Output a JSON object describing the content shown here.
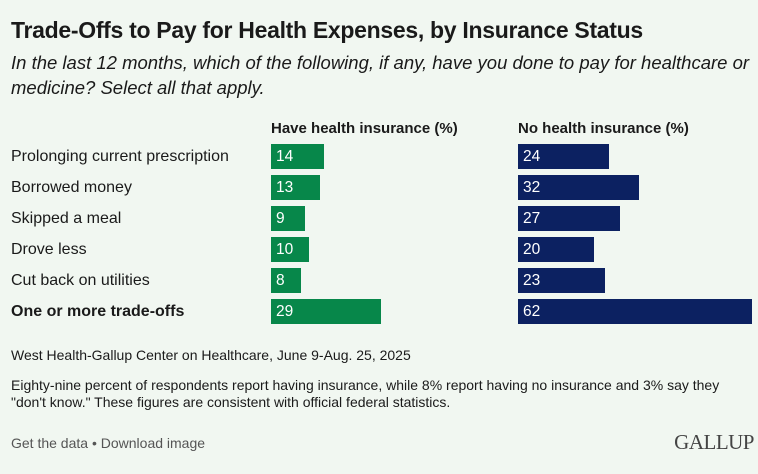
{
  "title": "Trade-Offs to Pay for Health Expenses, by Insurance Status",
  "subtitle": "In the last 12 months, which of the following, if any, have you done to pay for healthcare or medicine? Select all that apply.",
  "chart_data": {
    "type": "bar",
    "orientation": "horizontal",
    "categories": [
      "Prolonging current prescription",
      "Borrowed money",
      "Skipped a meal",
      "Drove less",
      "Cut back on utilities",
      "One or more trade-offs"
    ],
    "series": [
      {
        "name": "Have health insurance (%)",
        "values": [
          14,
          13,
          9,
          10,
          8,
          29
        ],
        "color": "#07874a"
      },
      {
        "name": "No health insurance (%)",
        "values": [
          24,
          32,
          27,
          20,
          23,
          62
        ],
        "color": "#0c2161"
      }
    ],
    "data_labels": true,
    "grid": false
  },
  "source": "West Health-Gallup Center on Healthcare, June 9-Aug. 25, 2025",
  "note": "Eighty-nine percent of respondents report having insurance, while 8% report having no insurance and 3% say they \"don't know.\" These figures are consistent with official federal statistics.",
  "footer": {
    "get_data": "Get the data",
    "separator": " • ",
    "download": "Download image"
  },
  "logo": "GALLUP"
}
